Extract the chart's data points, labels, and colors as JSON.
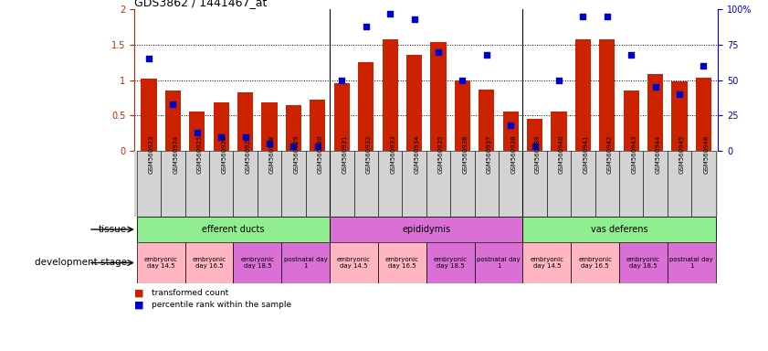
{
  "title": "GDS3862 / 1441467_at",
  "samples": [
    "GSM560923",
    "GSM560924",
    "GSM560925",
    "GSM560926",
    "GSM560927",
    "GSM560928",
    "GSM560929",
    "GSM560930",
    "GSM560931",
    "GSM560932",
    "GSM560933",
    "GSM560934",
    "GSM560935",
    "GSM560936",
    "GSM560937",
    "GSM560938",
    "GSM560939",
    "GSM560940",
    "GSM560941",
    "GSM560942",
    "GSM560943",
    "GSM560944",
    "GSM560945",
    "GSM560946"
  ],
  "red_values": [
    1.02,
    0.85,
    0.55,
    0.68,
    0.82,
    0.68,
    0.65,
    0.72,
    0.95,
    1.25,
    1.57,
    1.35,
    1.53,
    1.0,
    0.87,
    0.55,
    0.45,
    0.55,
    1.57,
    1.58,
    0.85,
    1.08,
    0.98,
    1.03
  ],
  "blue_values_pct": [
    65,
    33,
    13,
    10,
    10,
    5,
    3,
    3,
    50,
    88,
    97,
    93,
    70,
    50,
    68,
    18,
    3,
    50,
    95,
    95,
    68,
    45,
    40,
    60
  ],
  "tissues": [
    {
      "label": "efferent ducts",
      "start": 0,
      "end": 7,
      "color": "#90ee90"
    },
    {
      "label": "epididymis",
      "start": 8,
      "end": 15,
      "color": "#da70d6"
    },
    {
      "label": "vas deferens",
      "start": 16,
      "end": 23,
      "color": "#90ee90"
    }
  ],
  "dev_stages": [
    {
      "label": "embryonic\nday 14.5",
      "start": 0,
      "end": 1,
      "color": "#ffb6c1"
    },
    {
      "label": "embryonic\nday 16.5",
      "start": 2,
      "end": 3,
      "color": "#ffb6c1"
    },
    {
      "label": "embryonic\nday 18.5",
      "start": 4,
      "end": 5,
      "color": "#da70d6"
    },
    {
      "label": "postnatal day\n1",
      "start": 6,
      "end": 7,
      "color": "#da70d6"
    },
    {
      "label": "embryonic\nday 14.5",
      "start": 8,
      "end": 9,
      "color": "#ffb6c1"
    },
    {
      "label": "embryonic\nday 16.5",
      "start": 10,
      "end": 11,
      "color": "#ffb6c1"
    },
    {
      "label": "embryonic\nday 18.5",
      "start": 12,
      "end": 13,
      "color": "#da70d6"
    },
    {
      "label": "postnatal day\n1",
      "start": 14,
      "end": 15,
      "color": "#da70d6"
    },
    {
      "label": "embryonic\nday 14.5",
      "start": 16,
      "end": 17,
      "color": "#ffb6c1"
    },
    {
      "label": "embryonic\nday 16.5",
      "start": 18,
      "end": 19,
      "color": "#ffb6c1"
    },
    {
      "label": "embryonic\nday 18.5",
      "start": 20,
      "end": 21,
      "color": "#da70d6"
    },
    {
      "label": "postnatal day\n1",
      "start": 22,
      "end": 23,
      "color": "#da70d6"
    }
  ],
  "ylim_left": [
    0,
    2
  ],
  "ylim_right": [
    0,
    100
  ],
  "yticks_left": [
    0,
    0.5,
    1.0,
    1.5,
    2.0
  ],
  "ytick_labels_left": [
    "0",
    "0.5",
    "1",
    "1.5",
    "2"
  ],
  "yticks_right": [
    0,
    25,
    50,
    75,
    100
  ],
  "ytick_labels_right": [
    "0",
    "25",
    "50",
    "75",
    "100%"
  ],
  "bar_color": "#cc2200",
  "dot_color": "#0000cc",
  "bg_color": "#ffffff",
  "xticklabel_bg": "#d3d3d3",
  "legend_items": [
    {
      "color": "#cc2200",
      "label": "transformed count"
    },
    {
      "color": "#0000cc",
      "label": "percentile rank within the sample"
    }
  ]
}
